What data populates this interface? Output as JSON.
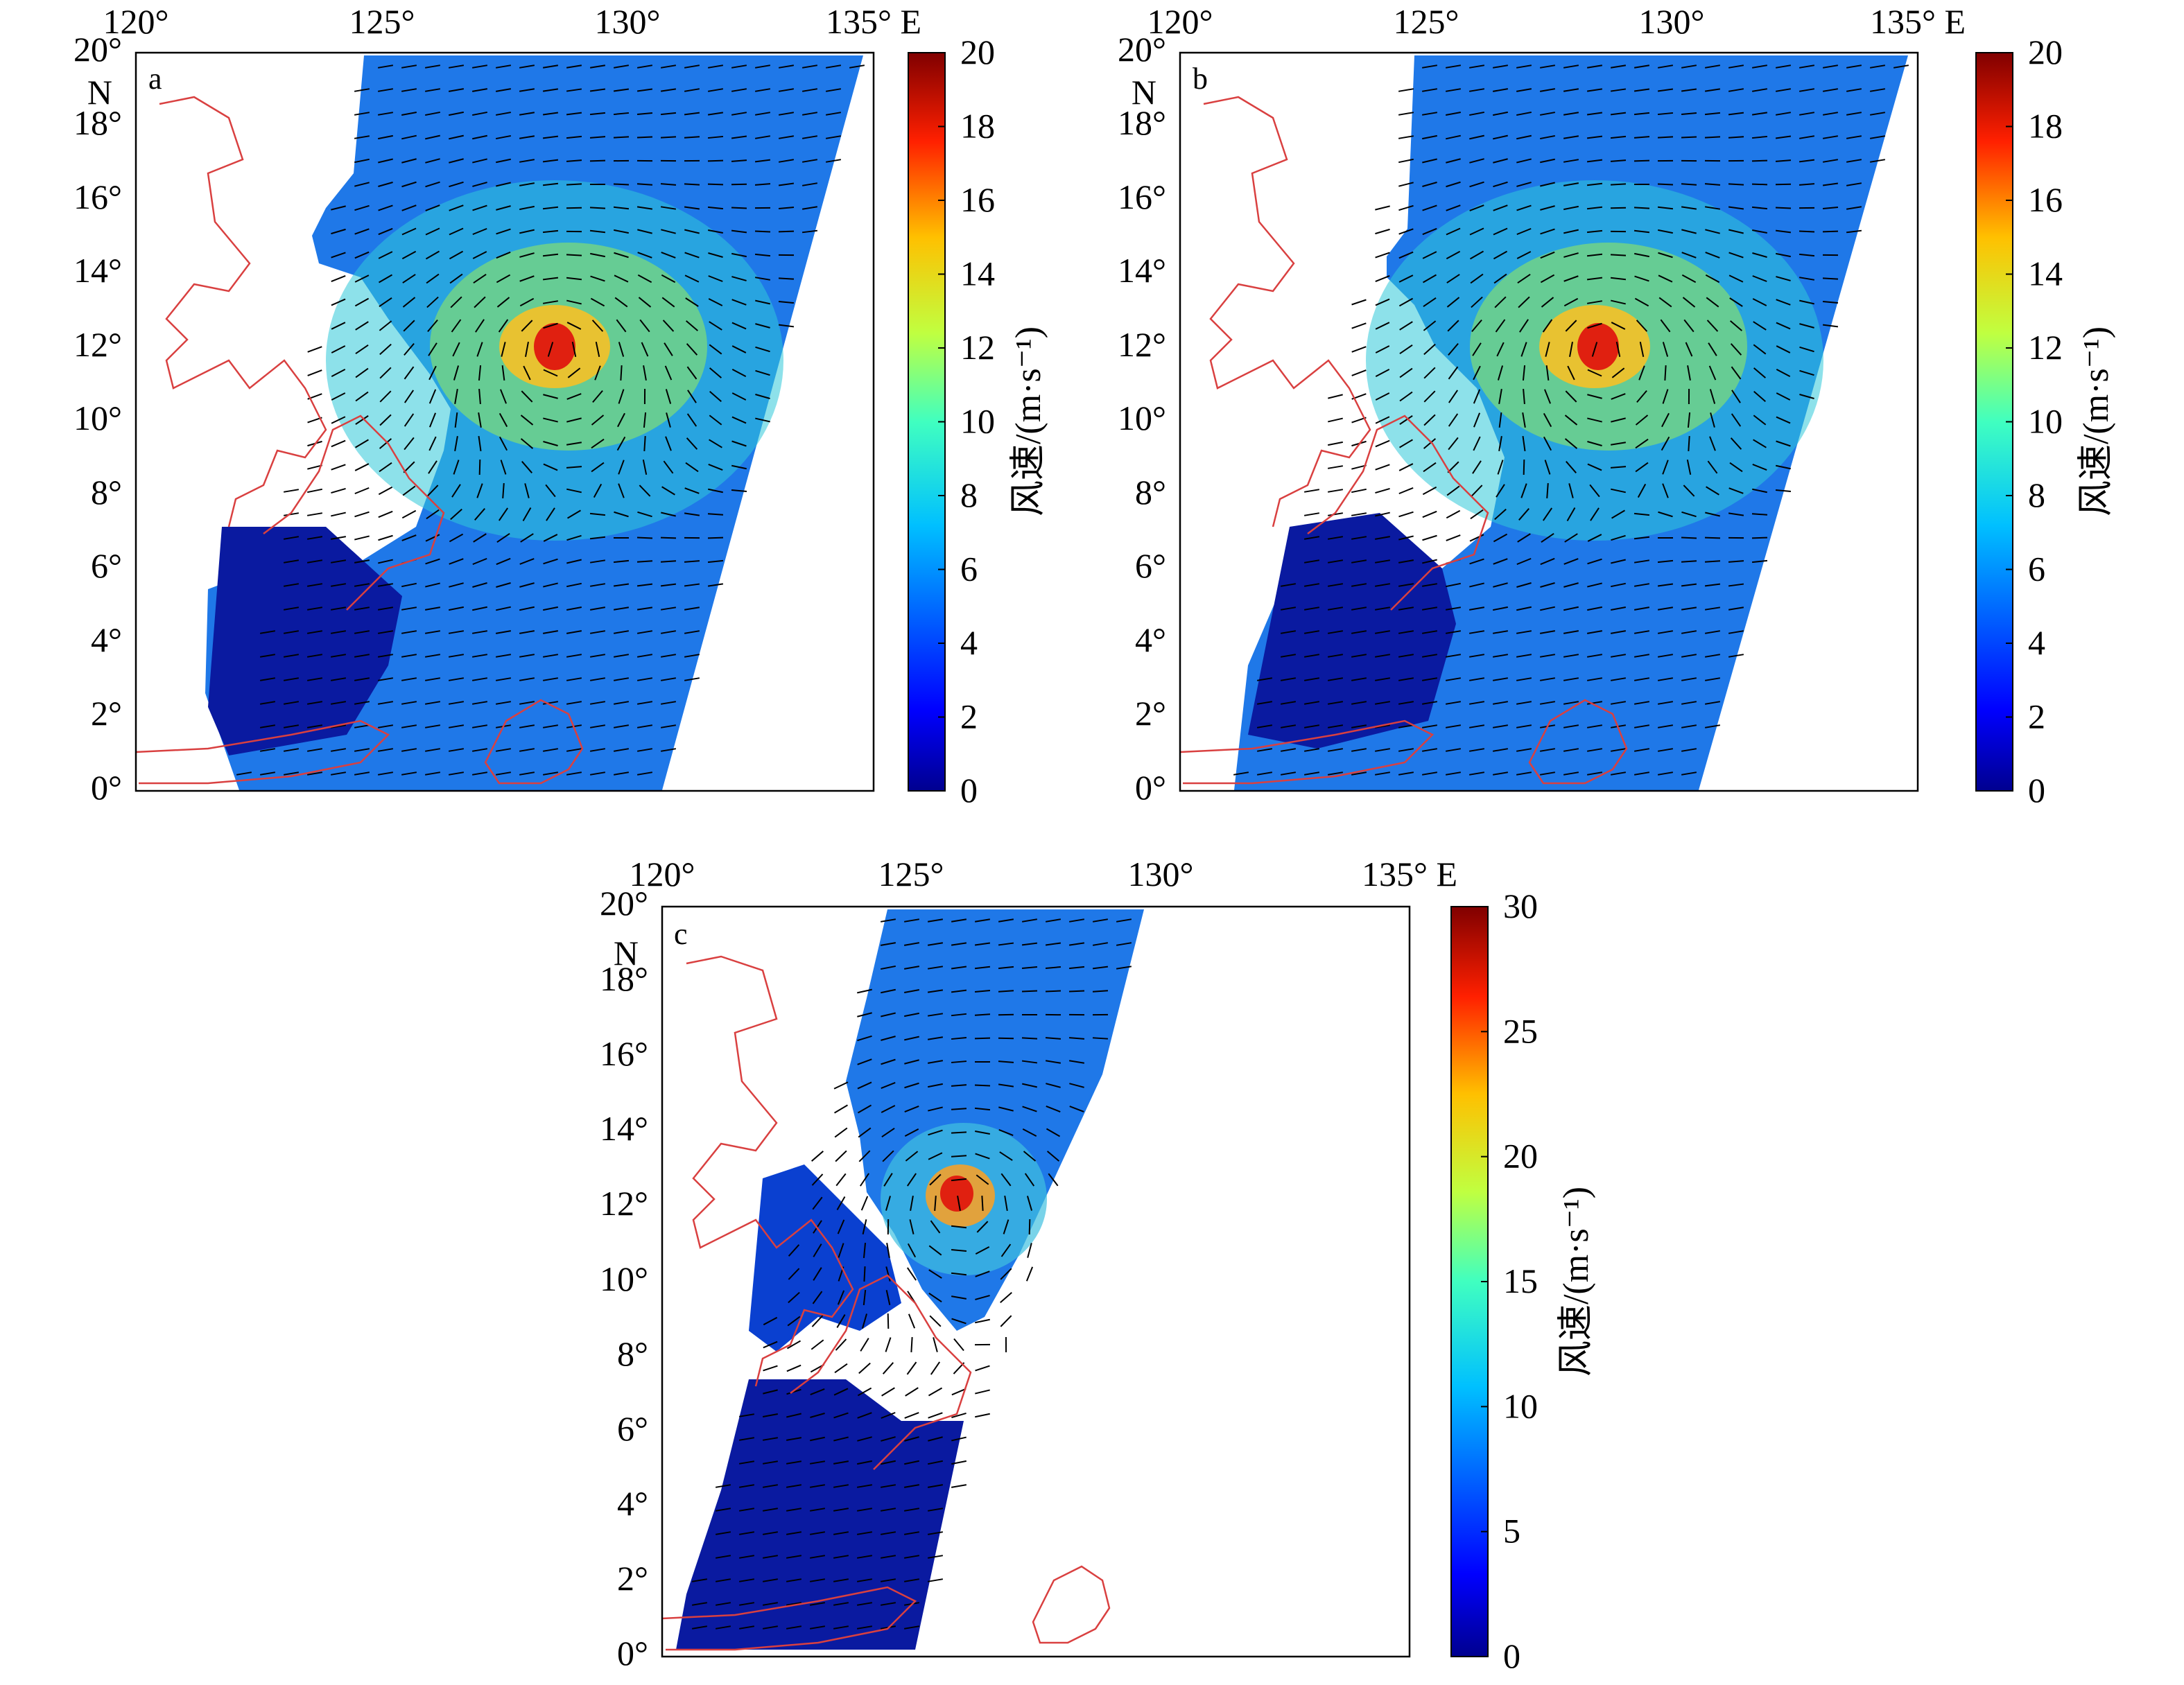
{
  "figure": {
    "colormap": [
      "#00008f",
      "#0000ff",
      "#0080ff",
      "#00ffff",
      "#80ff80",
      "#ffff00",
      "#ff8000",
      "#ff0000",
      "#800000"
    ],
    "land_color": "#d94040",
    "ocean_missing_color": "#ffffff",
    "arrow_color": "#000000",
    "panels": [
      {
        "id": "a",
        "label": "a",
        "x_tick_labels": [
          "120°",
          "125°",
          "130°",
          "135° E"
        ],
        "y_tick_labels": [
          "20°",
          "18°",
          "16°",
          "14°",
          "12°",
          "10°",
          "8°",
          "6°",
          "4°",
          "2°",
          "0°"
        ],
        "y_axis_unit": "N",
        "lon_range": [
          120,
          135
        ],
        "lat_range": [
          0,
          20
        ],
        "colorbar": {
          "ticks": [
            "20",
            "18",
            "16",
            "14",
            "12",
            "10",
            "8",
            "6",
            "4",
            "2",
            "0"
          ],
          "range": [
            0,
            20
          ],
          "title": "风速/(m·s⁻¹)"
        },
        "typhoon_center": {
          "lon": 128.6,
          "lat": 11.9
        },
        "peak_speed": 20
      },
      {
        "id": "b",
        "label": "b",
        "x_tick_labels": [
          "120°",
          "125°",
          "130°",
          "135° E"
        ],
        "y_tick_labels": [
          "20°",
          "18°",
          "16°",
          "14°",
          "12°",
          "10°",
          "8°",
          "6°",
          "4°",
          "2°",
          "0°"
        ],
        "y_axis_unit": "N",
        "lon_range": [
          120,
          135
        ],
        "lat_range": [
          0,
          20
        ],
        "colorbar": {
          "ticks": [
            "20",
            "18",
            "16",
            "14",
            "12",
            "10",
            "8",
            "6",
            "4",
            "2",
            "0"
          ],
          "range": [
            0,
            20
          ],
          "title": "风速/(m·s⁻¹)"
        },
        "typhoon_center": {
          "lon": 128.6,
          "lat": 11.9
        },
        "peak_speed": 20
      },
      {
        "id": "c",
        "label": "c",
        "x_tick_labels": [
          "120°",
          "125°",
          "130°",
          "135° E"
        ],
        "y_tick_labels": [
          "20°",
          "18°",
          "16°",
          "14°",
          "12°",
          "10°",
          "8°",
          "6°",
          "4°",
          "2°",
          "0°"
        ],
        "y_axis_unit": "N",
        "lon_range": [
          120,
          135
        ],
        "lat_range": [
          0,
          20
        ],
        "colorbar": {
          "ticks": [
            "30",
            "25",
            "20",
            "15",
            "10",
            "5",
            "0"
          ],
          "range": [
            0,
            30
          ],
          "title": "风速/(m·s⁻¹)"
        },
        "typhoon_center": {
          "lon": 126.0,
          "lat": 12.1
        },
        "peak_speed": 30
      }
    ]
  }
}
